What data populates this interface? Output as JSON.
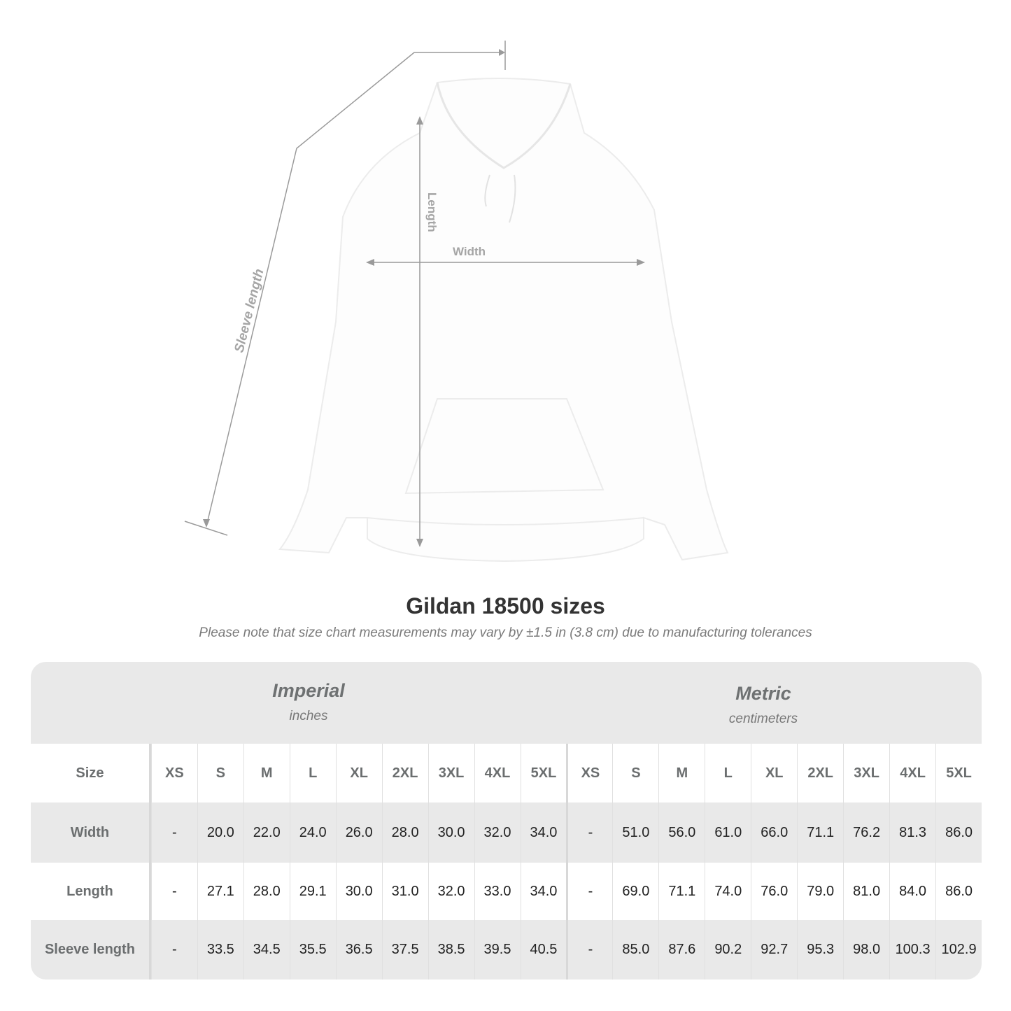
{
  "diagram": {
    "sleeve_label": "Sleeve length",
    "length_label": "Length",
    "width_label": "Width"
  },
  "title": "Gildan 18500 sizes",
  "note": "Please note that size chart measurements may vary by ±1.5 in (3.8 cm) due to manufacturing tolerances",
  "table": {
    "imperial": {
      "name": "Imperial",
      "unit": "inches"
    },
    "metric": {
      "name": "Metric",
      "unit": "centimeters"
    },
    "size_label": "Size",
    "sizes": [
      "XS",
      "S",
      "M",
      "L",
      "XL",
      "2XL",
      "3XL",
      "4XL",
      "5XL"
    ],
    "rows": [
      {
        "label": "Width",
        "imperial": [
          "-",
          "20.0",
          "22.0",
          "24.0",
          "26.0",
          "28.0",
          "30.0",
          "32.0",
          "34.0"
        ],
        "metric": [
          "-",
          "51.0",
          "56.0",
          "61.0",
          "66.0",
          "71.1",
          "76.2",
          "81.3",
          "86.0"
        ]
      },
      {
        "label": "Length",
        "imperial": [
          "-",
          "27.1",
          "28.0",
          "29.1",
          "30.0",
          "31.0",
          "32.0",
          "33.0",
          "34.0"
        ],
        "metric": [
          "-",
          "69.0",
          "71.1",
          "74.0",
          "76.0",
          "79.0",
          "81.0",
          "84.0",
          "86.0"
        ]
      },
      {
        "label": "Sleeve length",
        "imperial": [
          "-",
          "33.5",
          "34.5",
          "35.5",
          "36.5",
          "37.5",
          "38.5",
          "39.5",
          "40.5"
        ],
        "metric": [
          "-",
          "85.0",
          "87.6",
          "90.2",
          "92.7",
          "95.3",
          "98.0",
          "100.3",
          "102.9"
        ]
      }
    ]
  },
  "colors": {
    "band": "#e9e9e9",
    "label": "#6b6e6f",
    "measure_line": "#9a9a9a"
  }
}
